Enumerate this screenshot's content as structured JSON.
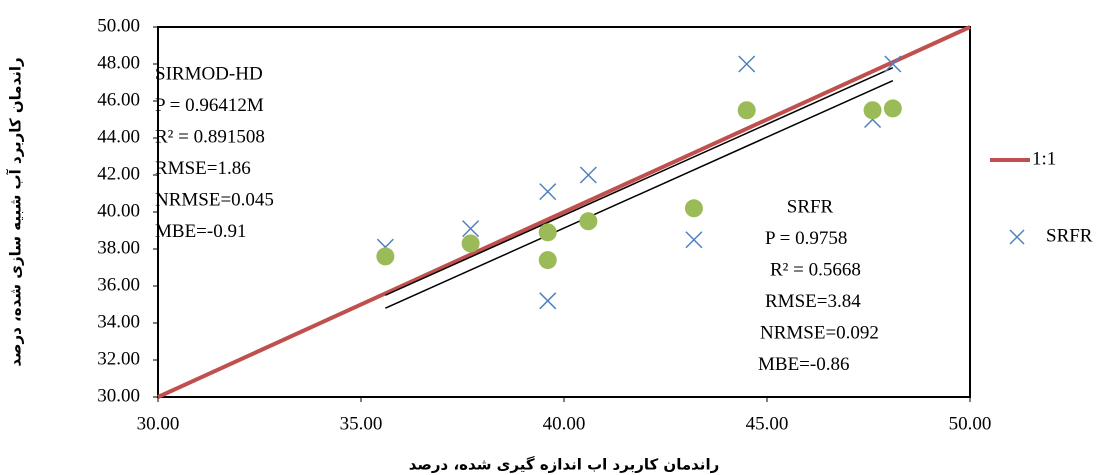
{
  "chart_data": {
    "type": "scatter",
    "x_label": "راندمان کاربرد اب اندازه گیری شده، درصد",
    "y_label": "راندمان کاربرد آب شبیه سازی شده، درصد",
    "xlim": [
      30,
      50
    ],
    "ylim": [
      30,
      50
    ],
    "xticks": [
      {
        "value": 30,
        "label": "30.00"
      },
      {
        "value": 35,
        "label": "35.00"
      },
      {
        "value": 40,
        "label": "40.00"
      },
      {
        "value": 45,
        "label": "45.00"
      },
      {
        "value": 50,
        "label": "50.00"
      }
    ],
    "yticks": [
      {
        "value": 30,
        "label": "30.00"
      },
      {
        "value": 32,
        "label": "32.00"
      },
      {
        "value": 34,
        "label": "34.00"
      },
      {
        "value": 36,
        "label": "36.00"
      },
      {
        "value": 38,
        "label": "38.00"
      },
      {
        "value": 40,
        "label": "40.00"
      },
      {
        "value": 42,
        "label": "42.00"
      },
      {
        "value": 44,
        "label": "44.00"
      },
      {
        "value": 46,
        "label": "46.00"
      },
      {
        "value": 48,
        "label": "48.00"
      },
      {
        "value": 50,
        "label": "50.00"
      }
    ],
    "legend": "right",
    "series": [
      {
        "name": "1:1",
        "color": "#c0504d",
        "marker": "line",
        "x": [
          30,
          50
        ],
        "values": [
          30,
          50
        ]
      },
      {
        "name": "SRFR",
        "color": "#4f81bd",
        "marker": "cross",
        "x": [
          35.6,
          37.7,
          39.6,
          39.6,
          40.6,
          43.2,
          44.5,
          47.6,
          48.1
        ],
        "values": [
          38.1,
          39.1,
          41.1,
          35.2,
          42.0,
          38.5,
          48.0,
          45.0,
          48.0
        ]
      },
      {
        "color": "#9bbb59",
        "marker": "circle",
        "x": [
          35.6,
          37.7,
          39.6,
          39.6,
          40.6,
          43.2,
          44.5,
          47.6,
          48.1
        ],
        "values": [
          37.6,
          38.3,
          38.9,
          37.4,
          39.5,
          40.2,
          45.5,
          45.5,
          45.6
        ]
      },
      {
        "color": "#000000",
        "marker": "thin-line",
        "x": [
          35.6,
          48.1
        ],
        "values": [
          35.5,
          47.8
        ]
      },
      {
        "color": "#000000",
        "marker": "thin-line",
        "x": [
          35.6,
          48.1
        ],
        "values": [
          34.8,
          47.1
        ]
      }
    ],
    "annotations": [
      [
        "SIRMOD-HD",
        "P = 0.96412M",
        "R² = 0.891508",
        "RMSE=1.86",
        "NRMSE=0.045",
        "MBE=-0.91"
      ],
      [
        "SRFR",
        "P = 0.9758",
        "R² = 0.5668",
        "RMSE=3.84",
        "NRMSE=0.092",
        "MBE=-0.86"
      ]
    ]
  }
}
